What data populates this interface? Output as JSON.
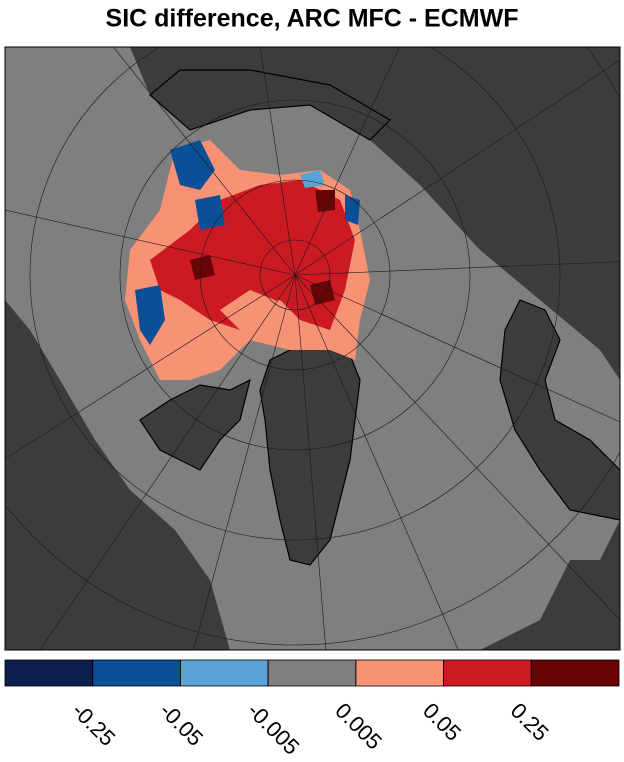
{
  "title": "SIC difference, ARC MFC - ECMWF",
  "colorbar": {
    "colors": [
      "#0c1f4f",
      "#0b4f97",
      "#5ba3d6",
      "#7f7f7f",
      "#f79274",
      "#cc1a23",
      "#680306"
    ],
    "ticks": [
      -0.25,
      -0.05,
      -0.005,
      0.005,
      0.05,
      0.25
    ]
  }
}
